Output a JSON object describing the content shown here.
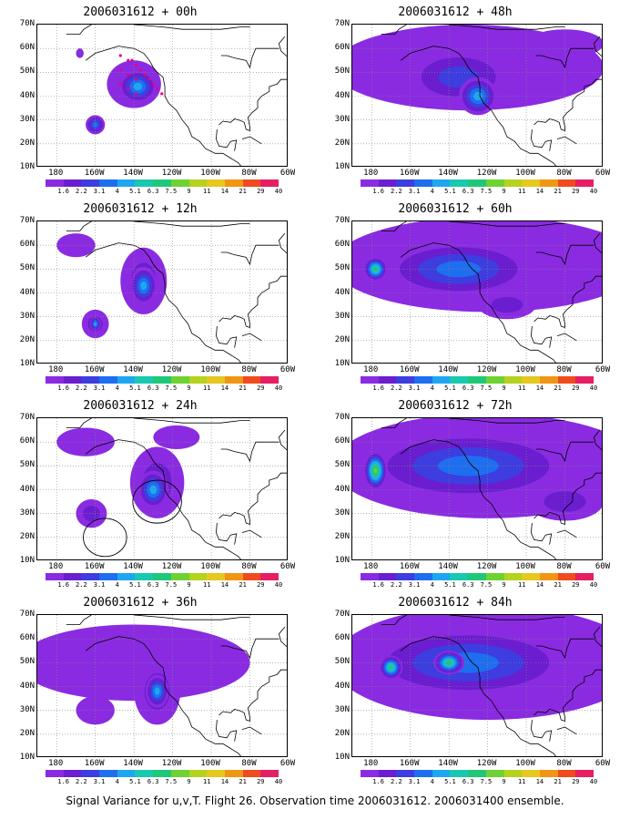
{
  "footer": "Signal Variance for u,v,T. Flight 26. Observation time 2006031612. 2006031400 ensemble.",
  "lat_labels": [
    "70N",
    "60N",
    "50N",
    "40N",
    "30N",
    "20N",
    "10N"
  ],
  "lon_labels": [
    "180",
    "160W",
    "140W",
    "120W",
    "100W",
    "80W",
    "60W"
  ],
  "colorbar": {
    "labels": [
      "1.6",
      "2.2",
      "3.1",
      "4",
      "5.1",
      "6.3",
      "7.5",
      "9",
      "11",
      "14",
      "21",
      "29",
      "40"
    ],
    "colors": [
      "#8a2be2",
      "#6a1ecf",
      "#3d3de0",
      "#1e6ef0",
      "#1ea7f0",
      "#19c8b0",
      "#1ec878",
      "#6ed232",
      "#b4d21e",
      "#e6c81e",
      "#f09614",
      "#f04b1e",
      "#e61e64"
    ]
  },
  "panels": [
    {
      "title": "2006031612 + 00h",
      "blobs": [
        {
          "lon": -140,
          "lat": 45,
          "rx": 14,
          "ry": 10,
          "level": 1
        },
        {
          "lon": -138,
          "lat": 44,
          "rx": 10,
          "ry": 7,
          "level": 4
        },
        {
          "lon": -160,
          "lat": 28,
          "rx": 5,
          "ry": 4,
          "level": 3
        },
        {
          "lon": -168,
          "lat": 58,
          "rx": 2,
          "ry": 2,
          "level": 0
        }
      ],
      "observations": true,
      "circles": []
    },
    {
      "title": "2006031612 + 12h",
      "blobs": [
        {
          "lon": -135,
          "lat": 45,
          "rx": 12,
          "ry": 14,
          "level": 1
        },
        {
          "lon": -135,
          "lat": 43,
          "rx": 7,
          "ry": 8,
          "level": 4
        },
        {
          "lon": -160,
          "lat": 27,
          "rx": 7,
          "ry": 6,
          "level": 1
        },
        {
          "lon": -160,
          "lat": 27,
          "rx": 3,
          "ry": 3,
          "level": 4
        },
        {
          "lon": -170,
          "lat": 60,
          "rx": 10,
          "ry": 5,
          "level": 0
        }
      ],
      "observations": false,
      "circles": []
    },
    {
      "title": "2006031612 + 24h",
      "blobs": [
        {
          "lon": -128,
          "lat": 43,
          "rx": 14,
          "ry": 15,
          "level": 1
        },
        {
          "lon": -130,
          "lat": 40,
          "rx": 8,
          "ry": 8,
          "level": 4
        },
        {
          "lon": -162,
          "lat": 30,
          "rx": 8,
          "ry": 6,
          "level": 1
        },
        {
          "lon": -165,
          "lat": 60,
          "rx": 15,
          "ry": 6,
          "level": 0
        },
        {
          "lon": -118,
          "lat": 62,
          "rx": 12,
          "ry": 5,
          "level": 0
        }
      ],
      "observations": false,
      "circles": [
        {
          "lon": -128,
          "lat": 35,
          "r": 9
        },
        {
          "lon": -155,
          "lat": 20,
          "r": 8
        }
      ]
    },
    {
      "title": "2006031612 + 36h",
      "blobs": [
        {
          "lon": -140,
          "lat": 50,
          "rx": 60,
          "ry": 16,
          "level": 0
        },
        {
          "lon": -128,
          "lat": 38,
          "rx": 12,
          "ry": 14,
          "level": 1
        },
        {
          "lon": -128,
          "lat": 38,
          "rx": 6,
          "ry": 7,
          "level": 4
        },
        {
          "lon": -160,
          "lat": 30,
          "rx": 10,
          "ry": 6,
          "level": 0
        }
      ],
      "observations": false,
      "circles": []
    },
    {
      "title": "2006031612 + 48h",
      "blobs": [
        {
          "lon": -130,
          "lat": 52,
          "rx": 70,
          "ry": 18,
          "level": 0
        },
        {
          "lon": -135,
          "lat": 48,
          "rx": 28,
          "ry": 12,
          "level": 2
        },
        {
          "lon": -125,
          "lat": 40,
          "rx": 10,
          "ry": 8,
          "level": 4
        },
        {
          "lon": -80,
          "lat": 62,
          "rx": 20,
          "ry": 6,
          "level": 0
        }
      ],
      "observations": false,
      "circles": []
    },
    {
      "title": "2006031612 + 60h",
      "blobs": [
        {
          "lon": -120,
          "lat": 52,
          "rx": 80,
          "ry": 20,
          "level": 0
        },
        {
          "lon": -135,
          "lat": 50,
          "rx": 40,
          "ry": 12,
          "level": 3
        },
        {
          "lon": -178,
          "lat": 50,
          "rx": 6,
          "ry": 5,
          "level": 6
        },
        {
          "lon": -110,
          "lat": 35,
          "rx": 15,
          "ry": 6,
          "level": 1
        }
      ],
      "observations": false,
      "circles": []
    },
    {
      "title": "2006031612 + 72h",
      "blobs": [
        {
          "lon": -120,
          "lat": 50,
          "rx": 80,
          "ry": 22,
          "level": 0
        },
        {
          "lon": -130,
          "lat": 50,
          "rx": 55,
          "ry": 15,
          "level": 3
        },
        {
          "lon": -178,
          "lat": 48,
          "rx": 6,
          "ry": 8,
          "level": 7
        },
        {
          "lon": -80,
          "lat": 35,
          "rx": 20,
          "ry": 8,
          "level": 1
        }
      ],
      "observations": false,
      "circles": []
    },
    {
      "title": "2006031612 + 84h",
      "blobs": [
        {
          "lon": -120,
          "lat": 50,
          "rx": 80,
          "ry": 24,
          "level": 1
        },
        {
          "lon": -130,
          "lat": 50,
          "rx": 55,
          "ry": 15,
          "level": 3
        },
        {
          "lon": -140,
          "lat": 50,
          "rx": 8,
          "ry": 5,
          "level": 6
        },
        {
          "lon": -170,
          "lat": 48,
          "rx": 6,
          "ry": 5,
          "level": 6
        }
      ],
      "observations": false,
      "circles": []
    }
  ]
}
